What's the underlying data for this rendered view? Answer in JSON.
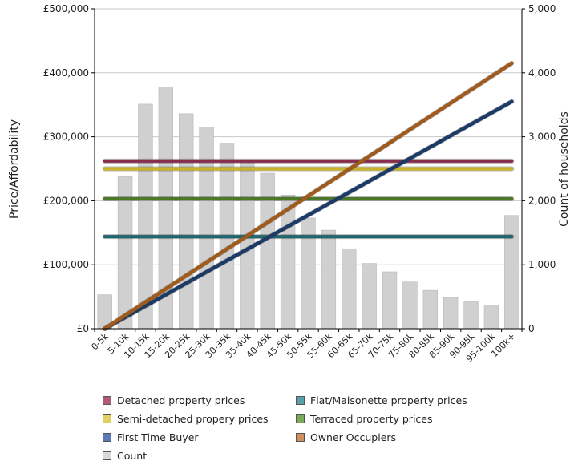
{
  "chart_data": {
    "type": "bar",
    "title": "",
    "xlabel": "",
    "ylabel": "Price/Affordability",
    "y2label": "Count of households",
    "categories": [
      "0-5k",
      "5-10k",
      "10-15k",
      "15-20k",
      "20-25k",
      "25-30k",
      "30-35k",
      "35-40k",
      "40-45k",
      "45-50k",
      "50-55k",
      "55-60k",
      "60-65k",
      "65-70k",
      "70-75k",
      "75-80k",
      "80-85k",
      "85-90k",
      "90-95k",
      "95-100k",
      "100k+"
    ],
    "ylim": [
      0,
      500000
    ],
    "y2lim": [
      0,
      5000
    ],
    "yticks": [
      "£0",
      "£100,000",
      "£200,000",
      "£300,000",
      "£400,000",
      "£500,000"
    ],
    "y2ticks": [
      "0",
      "1,000",
      "2,000",
      "3,000",
      "4,000",
      "5,000"
    ],
    "bars": {
      "name": "Count",
      "axis": "right",
      "color": "#d0d0d0",
      "values": [
        530,
        2380,
        3510,
        3780,
        3360,
        3150,
        2900,
        2640,
        2430,
        2090,
        1730,
        1540,
        1250,
        1020,
        890,
        730,
        600,
        490,
        420,
        370,
        1770
      ]
    },
    "lines": [
      {
        "name": "Detached property prices",
        "color": "#8a2d4a",
        "values": [
          262000,
          262000,
          262000,
          262000,
          262000,
          262000,
          262000,
          262000,
          262000,
          262000,
          262000,
          262000,
          262000,
          262000,
          262000,
          262000,
          262000,
          262000,
          262000,
          262000,
          262000
        ]
      },
      {
        "name": "Semi-detached propery prices",
        "color": "#c9b427",
        "values": [
          250000,
          250000,
          250000,
          250000,
          250000,
          250000,
          250000,
          250000,
          250000,
          250000,
          250000,
          250000,
          250000,
          250000,
          250000,
          250000,
          250000,
          250000,
          250000,
          250000,
          250000
        ]
      },
      {
        "name": "Terraced property prices",
        "color": "#4a7a28",
        "values": [
          203000,
          203000,
          203000,
          203000,
          203000,
          203000,
          203000,
          203000,
          203000,
          203000,
          203000,
          203000,
          203000,
          203000,
          203000,
          203000,
          203000,
          203000,
          203000,
          203000,
          203000
        ]
      },
      {
        "name": "Flat/Maisonette property prices",
        "color": "#1e6670",
        "values": [
          144000,
          144000,
          144000,
          144000,
          144000,
          144000,
          144000,
          144000,
          144000,
          144000,
          144000,
          144000,
          144000,
          144000,
          144000,
          144000,
          144000,
          144000,
          144000,
          144000,
          144000
        ]
      },
      {
        "name": "First Time Buyer",
        "color": "#1c3a66",
        "values": [
          0,
          17750,
          35500,
          53250,
          71000,
          88750,
          106500,
          124250,
          142000,
          159750,
          177500,
          195250,
          213000,
          230750,
          248500,
          266250,
          284000,
          301750,
          319500,
          337250,
          355000
        ]
      },
      {
        "name": "Owner Occupiers",
        "color": "#a05a1c",
        "values": [
          0,
          20750,
          41500,
          62250,
          83000,
          103750,
          124500,
          145250,
          166000,
          186750,
          207500,
          228250,
          249000,
          269750,
          290500,
          311250,
          332000,
          352750,
          373500,
          394250,
          415000
        ]
      }
    ],
    "legend_position": "bottom",
    "grid": true
  },
  "legend": [
    {
      "label": "Detached property prices",
      "color": "#b05a7a"
    },
    {
      "label": "Flat/Maisonette property prices",
      "color": "#5aa0a8"
    },
    {
      "label": "Semi-detached propery prices",
      "color": "#e0d060"
    },
    {
      "label": "Terraced property prices",
      "color": "#7aaa58"
    },
    {
      "label": "First Time Buyer",
      "color": "#5a7ab8"
    },
    {
      "label": "Owner Occupiers",
      "color": "#d09060"
    },
    {
      "label": "Count",
      "color": "#d8d8d8"
    }
  ]
}
